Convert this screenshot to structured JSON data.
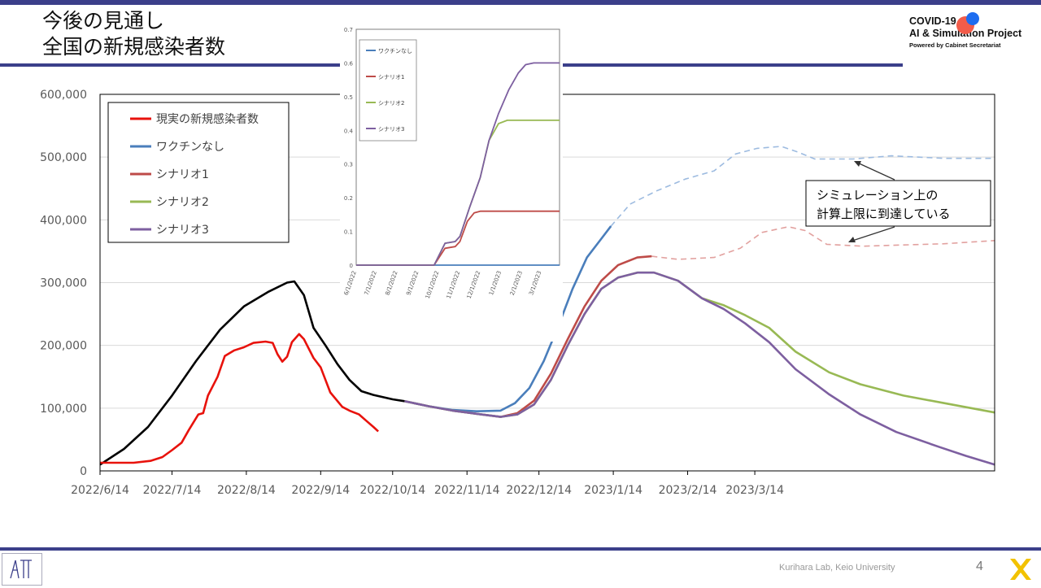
{
  "header": {
    "title_line1": "今後の見通し",
    "title_line2": "全国の新規感染者数"
  },
  "logo": {
    "line1": "COVID-19",
    "line2": "AI & Simulation Project",
    "line3": "Powered by Cabinet Secretariat"
  },
  "footer": {
    "lab": "Kurihara Lab, Keio University",
    "page": "4"
  },
  "annotation": {
    "line1": "シミュレーション上の",
    "line2": "計算上限に到達している"
  },
  "colors": {
    "actual": "#e8120c",
    "past": "#000000",
    "no_vaccine": "#4a7ebb",
    "scenario1": "#be4b48",
    "scenario2": "#98b954",
    "scenario3": "#7d5fa0",
    "brand": "#3b3f8a"
  },
  "chart_data": [
    {
      "type": "line",
      "title": "",
      "xlabel": "",
      "ylabel": "",
      "ylim": [
        0,
        600000
      ],
      "y_ticks": [
        "0",
        "100,000",
        "200,000",
        "300,000",
        "400,000",
        "500,000",
        "600,000"
      ],
      "x_ticks": [
        "2022/6/14",
        "2022/7/14",
        "2022/8/14",
        "2022/9/14",
        "2022/10/14",
        "2022/11/14",
        "2022/12/14",
        "2023/1/14",
        "2023/2/14",
        "2023/3/14"
      ],
      "legend_position": "top-left",
      "legend": [
        "現実の新規感染者数",
        "ワクチンなし",
        "シナリオ1",
        "シナリオ2",
        "シナリオ3"
      ],
      "series": [
        {
          "name": "現実の新規感染者数",
          "key": "actual",
          "points": [
            [
              "2022-06-14",
              13000
            ],
            [
              "2022-06-28",
              13000
            ],
            [
              "2022-07-05",
              16000
            ],
            [
              "2022-07-10",
              22000
            ],
            [
              "2022-07-14",
              33000
            ],
            [
              "2022-07-18",
              45000
            ],
            [
              "2022-07-21",
              65000
            ],
            [
              "2022-07-25",
              90000
            ],
            [
              "2022-07-27",
              92000
            ],
            [
              "2022-07-29",
              120000
            ],
            [
              "2022-08-02",
              150000
            ],
            [
              "2022-08-05",
              183000
            ],
            [
              "2022-08-09",
              192000
            ],
            [
              "2022-08-13",
              197000
            ],
            [
              "2022-08-17",
              204000
            ],
            [
              "2022-08-22",
              206000
            ],
            [
              "2022-08-25",
              204000
            ],
            [
              "2022-08-27",
              186000
            ],
            [
              "2022-08-29",
              174000
            ],
            [
              "2022-08-31",
              182000
            ],
            [
              "2022-09-02",
              205000
            ],
            [
              "2022-09-05",
              218000
            ],
            [
              "2022-09-07",
              210000
            ],
            [
              "2022-09-11",
              180000
            ],
            [
              "2022-09-14",
              165000
            ],
            [
              "2022-09-18",
              125000
            ],
            [
              "2022-09-23",
              102000
            ],
            [
              "2022-09-26",
              96000
            ],
            [
              "2022-09-30",
              90000
            ],
            [
              "2022-10-03",
              80000
            ],
            [
              "2022-10-06",
              70000
            ],
            [
              "2022-10-08",
              63000
            ]
          ]
        },
        {
          "name": "",
          "key": "past",
          "points": [
            [
              "2022-06-14",
              10000
            ],
            [
              "2022-06-24",
              35000
            ],
            [
              "2022-07-04",
              70000
            ],
            [
              "2022-07-14",
              120000
            ],
            [
              "2022-07-24",
              175000
            ],
            [
              "2022-08-03",
              225000
            ],
            [
              "2022-08-13",
              262000
            ],
            [
              "2022-08-23",
              285000
            ],
            [
              "2022-08-31",
              300000
            ],
            [
              "2022-09-03",
              302000
            ],
            [
              "2022-09-07",
              280000
            ],
            [
              "2022-09-11",
              228000
            ],
            [
              "2022-09-16",
              200000
            ],
            [
              "2022-09-21",
              170000
            ],
            [
              "2022-09-26",
              145000
            ],
            [
              "2022-10-01",
              127000
            ],
            [
              "2022-10-06",
              121000
            ],
            [
              "2022-10-14",
              114000
            ],
            [
              "2022-10-19",
              111000
            ]
          ]
        },
        {
          "name": "ワクチンなし",
          "key": "no_vaccine",
          "points": [
            [
              "2022-10-19",
              111000
            ],
            [
              "2022-10-29",
              103000
            ],
            [
              "2022-11-08",
              97000
            ],
            [
              "2022-11-18",
              95000
            ],
            [
              "2022-11-28",
              96000
            ],
            [
              "2022-12-04",
              108000
            ],
            [
              "2022-12-10",
              132000
            ],
            [
              "2022-12-16",
              175000
            ],
            [
              "2022-12-22",
              230000
            ],
            [
              "2022-12-28",
              290000
            ],
            [
              "2023-01-03",
              340000
            ],
            [
              "2023-01-09",
              370000
            ],
            [
              "2023-01-13",
              390000
            ]
          ]
        },
        {
          "name": "ワクチンなし(上限)",
          "key": "no_vaccine_cap",
          "points": [
            [
              "2023-01-13",
              390000
            ],
            [
              "2023-01-21",
              425000
            ],
            [
              "2023-02-01",
              446000
            ],
            [
              "2023-02-13",
              465000
            ],
            [
              "2023-02-25",
              478000
            ],
            [
              "2023-03-06",
              505000
            ],
            [
              "2023-03-15",
              514000
            ],
            [
              "2023-03-25",
              517000
            ],
            [
              "2023-04-01",
              508000
            ],
            [
              "2023-04-08",
              497000
            ],
            [
              "2023-04-24",
              497000
            ],
            [
              "2023-05-10",
              502000
            ],
            [
              "2023-06-01",
              498000
            ],
            [
              "2023-06-22",
              498000
            ]
          ]
        },
        {
          "name": "シナリオ1",
          "key": "scenario1",
          "points": [
            [
              "2022-10-19",
              111000
            ],
            [
              "2022-10-29",
              103000
            ],
            [
              "2022-11-08",
              96000
            ],
            [
              "2022-11-18",
              91000
            ],
            [
              "2022-11-28",
              86000
            ],
            [
              "2022-12-05",
              92000
            ],
            [
              "2022-12-12",
              112000
            ],
            [
              "2022-12-19",
              155000
            ],
            [
              "2022-12-26",
              210000
            ],
            [
              "2023-01-02",
              262000
            ],
            [
              "2023-01-09",
              303000
            ],
            [
              "2023-01-16",
              328000
            ],
            [
              "2023-01-24",
              340000
            ],
            [
              "2023-01-30",
              342000
            ]
          ]
        },
        {
          "name": "シナリオ1(上限)",
          "key": "scenario1_cap",
          "points": [
            [
              "2023-01-30",
              342000
            ],
            [
              "2023-02-10",
              337000
            ],
            [
              "2023-02-25",
              340000
            ],
            [
              "2023-03-08",
              355000
            ],
            [
              "2023-03-17",
              380000
            ],
            [
              "2023-03-28",
              389000
            ],
            [
              "2023-04-04",
              383000
            ],
            [
              "2023-04-13",
              361000
            ],
            [
              "2023-04-28",
              358000
            ],
            [
              "2023-05-15",
              360000
            ],
            [
              "2023-06-01",
              362000
            ],
            [
              "2023-06-22",
              367000
            ]
          ]
        },
        {
          "name": "シナリオ2",
          "key": "scenario2",
          "points": [
            [
              "2022-10-19",
              111000
            ],
            [
              "2022-10-29",
              103000
            ],
            [
              "2022-11-08",
              96000
            ],
            [
              "2022-11-18",
              91000
            ],
            [
              "2022-11-28",
              86000
            ],
            [
              "2022-12-05",
              90000
            ],
            [
              "2022-12-12",
              106000
            ],
            [
              "2022-12-19",
              145000
            ],
            [
              "2022-12-26",
              200000
            ],
            [
              "2023-01-02",
              250000
            ],
            [
              "2023-01-09",
              290000
            ],
            [
              "2023-01-16",
              308000
            ],
            [
              "2023-01-24",
              316000
            ],
            [
              "2023-01-31",
              316000
            ],
            [
              "2023-02-10",
              303000
            ],
            [
              "2023-02-20",
              275000
            ],
            [
              "2023-03-01",
              264000
            ],
            [
              "2023-03-10",
              248000
            ],
            [
              "2023-03-20",
              228000
            ],
            [
              "2023-03-31",
              190000
            ],
            [
              "2023-04-14",
              157000
            ],
            [
              "2023-04-27",
              138000
            ],
            [
              "2023-05-15",
              120000
            ],
            [
              "2023-06-01",
              108000
            ],
            [
              "2023-06-22",
              93000
            ]
          ]
        },
        {
          "name": "シナリオ3",
          "key": "scenario3",
          "points": [
            [
              "2022-10-19",
              111000
            ],
            [
              "2022-10-29",
              103000
            ],
            [
              "2022-11-08",
              96000
            ],
            [
              "2022-11-18",
              91000
            ],
            [
              "2022-11-28",
              86000
            ],
            [
              "2022-12-05",
              90000
            ],
            [
              "2022-12-12",
              106000
            ],
            [
              "2022-12-19",
              145000
            ],
            [
              "2022-12-26",
              200000
            ],
            [
              "2023-01-02",
              250000
            ],
            [
              "2023-01-09",
              290000
            ],
            [
              "2023-01-16",
              308000
            ],
            [
              "2023-01-24",
              316000
            ],
            [
              "2023-01-31",
              316000
            ],
            [
              "2023-02-10",
              303000
            ],
            [
              "2023-02-20",
              275000
            ],
            [
              "2023-03-01",
              258000
            ],
            [
              "2023-03-10",
              235000
            ],
            [
              "2023-03-20",
              205000
            ],
            [
              "2023-03-31",
              162000
            ],
            [
              "2023-04-14",
              122000
            ],
            [
              "2023-04-27",
              90000
            ],
            [
              "2023-05-12",
              62000
            ],
            [
              "2023-05-30",
              38000
            ],
            [
              "2023-06-10",
              24000
            ],
            [
              "2023-06-22",
              10000
            ]
          ]
        }
      ]
    },
    {
      "type": "line",
      "title": "",
      "ylim": [
        0,
        0.7
      ],
      "y_ticks": [
        "0",
        "0.1",
        "0.2",
        "0.3",
        "0.4",
        "0.5",
        "0.6",
        "0.7"
      ],
      "x_ticks": [
        "6/1/2022",
        "7/1/2022",
        "8/1/2022",
        "9/1/2022",
        "10/1/2022",
        "11/1/2022",
        "12/1/2022",
        "1/1/2023",
        "2/1/2023",
        "3/1/2023"
      ],
      "legend_position": "top-left",
      "legend": [
        "ワクチンなし",
        "シナリオ1",
        "シナリオ2",
        "シナリオ3"
      ],
      "series": [
        {
          "name": "ワクチンなし",
          "key": "no_vaccine",
          "points": [
            [
              "2022-06-01",
              0
            ],
            [
              "2023-03-28",
              0
            ]
          ]
        },
        {
          "name": "シナリオ1",
          "key": "scenario1",
          "points": [
            [
              "2022-06-01",
              0
            ],
            [
              "2022-09-24",
              0
            ],
            [
              "2022-10-10",
              0.05
            ],
            [
              "2022-10-25",
              0.055
            ],
            [
              "2022-11-01",
              0.07
            ],
            [
              "2022-11-12",
              0.13
            ],
            [
              "2022-11-22",
              0.155
            ],
            [
              "2022-12-01",
              0.16
            ],
            [
              "2023-03-28",
              0.16
            ]
          ]
        },
        {
          "name": "シナリオ2",
          "key": "scenario2",
          "points": [
            [
              "2022-06-01",
              0
            ],
            [
              "2022-09-24",
              0
            ],
            [
              "2022-10-10",
              0.065
            ],
            [
              "2022-10-25",
              0.07
            ],
            [
              "2022-11-01",
              0.085
            ],
            [
              "2022-11-15",
              0.17
            ],
            [
              "2022-12-01",
              0.26
            ],
            [
              "2022-12-14",
              0.37
            ],
            [
              "2022-12-28",
              0.42
            ],
            [
              "2023-01-10",
              0.43
            ],
            [
              "2023-03-28",
              0.43
            ]
          ]
        },
        {
          "name": "シナリオ3",
          "key": "scenario3",
          "points": [
            [
              "2022-06-01",
              0
            ],
            [
              "2022-09-24",
              0
            ],
            [
              "2022-10-10",
              0.065
            ],
            [
              "2022-10-25",
              0.07
            ],
            [
              "2022-11-01",
              0.085
            ],
            [
              "2022-11-15",
              0.17
            ],
            [
              "2022-12-01",
              0.26
            ],
            [
              "2022-12-14",
              0.37
            ],
            [
              "2022-12-28",
              0.45
            ],
            [
              "2023-01-12",
              0.52
            ],
            [
              "2023-01-26",
              0.57
            ],
            [
              "2023-02-06",
              0.595
            ],
            [
              "2023-02-18",
              0.6
            ],
            [
              "2023-03-28",
              0.6
            ]
          ]
        }
      ]
    }
  ]
}
